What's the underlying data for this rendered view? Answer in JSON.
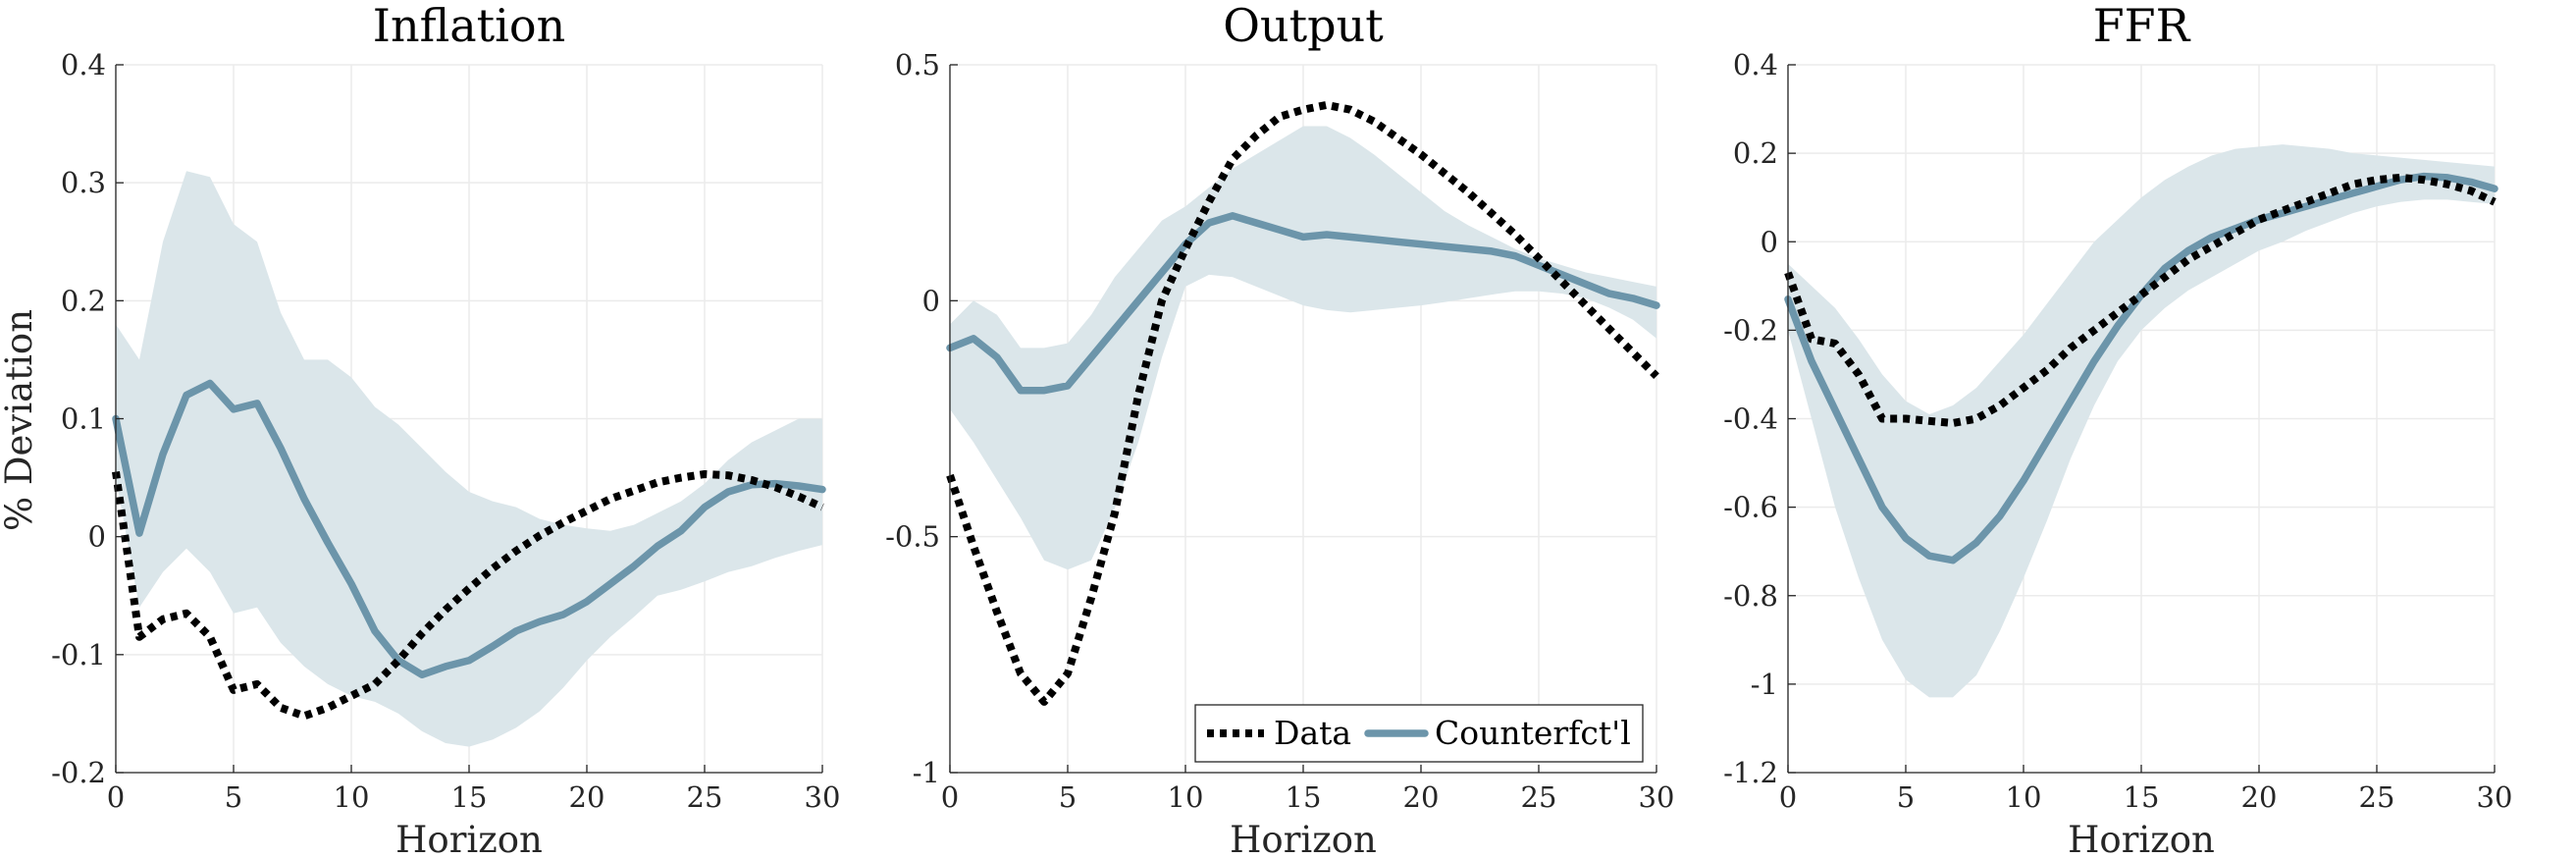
{
  "figure": {
    "ylabel": "% Deviation",
    "colors": {
      "band": "#dbe6ea",
      "counterfactual": "#6c95aa",
      "data": "#000000",
      "grid": "#ebebeb"
    }
  },
  "legend": {
    "placement": "bottom-right of Output panel",
    "entries": [
      "Data",
      "Counterfct'l"
    ]
  },
  "chart_data": [
    {
      "type": "line",
      "title": "Inflation",
      "xlabel": "Horizon",
      "ylabel": "% Deviation",
      "xlim": [
        0,
        30
      ],
      "ylim": [
        -0.2,
        0.4
      ],
      "xticks": [
        0,
        5,
        10,
        15,
        20,
        25,
        30
      ],
      "xtick_labels": [
        "0",
        "5",
        "10",
        "15",
        "20",
        "25",
        "30"
      ],
      "yticks": [
        -0.2,
        -0.1,
        0,
        0.1,
        0.2,
        0.3,
        0.4
      ],
      "ytick_labels": [
        "-0.2",
        "-0.1",
        "0",
        "0.1",
        "0.2",
        "0.3",
        "0.4"
      ],
      "grid": true,
      "x": [
        0,
        1,
        2,
        3,
        4,
        5,
        6,
        7,
        8,
        9,
        10,
        11,
        12,
        13,
        14,
        15,
        16,
        17,
        18,
        19,
        20,
        21,
        22,
        23,
        24,
        25,
        26,
        27,
        28,
        29,
        30
      ],
      "band_upper": [
        0.18,
        0.15,
        0.25,
        0.31,
        0.305,
        0.265,
        0.25,
        0.19,
        0.15,
        0.15,
        0.135,
        0.11,
        0.095,
        0.075,
        0.055,
        0.038,
        0.03,
        0.025,
        0.015,
        0.01,
        0.007,
        0.005,
        0.01,
        0.02,
        0.03,
        0.045,
        0.065,
        0.08,
        0.09,
        0.1,
        0.1
      ],
      "band_lower": [
        0.05,
        -0.06,
        -0.03,
        -0.01,
        -0.03,
        -0.065,
        -0.06,
        -0.09,
        -0.11,
        -0.125,
        -0.135,
        -0.14,
        -0.15,
        -0.165,
        -0.175,
        -0.178,
        -0.172,
        -0.162,
        -0.148,
        -0.128,
        -0.105,
        -0.085,
        -0.068,
        -0.05,
        -0.045,
        -0.038,
        -0.03,
        -0.025,
        -0.018,
        -0.012,
        -0.007
      ],
      "series": [
        {
          "name": "Data",
          "style": "dotted",
          "values": [
            0.055,
            -0.085,
            -0.07,
            -0.065,
            -0.085,
            -0.13,
            -0.125,
            -0.145,
            -0.152,
            -0.145,
            -0.135,
            -0.125,
            -0.105,
            -0.082,
            -0.062,
            -0.044,
            -0.027,
            -0.012,
            0.001,
            0.012,
            0.022,
            0.032,
            0.039,
            0.046,
            0.05,
            0.053,
            0.052,
            0.048,
            0.042,
            0.034,
            0.025
          ]
        },
        {
          "name": "Counterfct'l",
          "style": "solid",
          "values": [
            0.1,
            0.003,
            0.07,
            0.12,
            0.13,
            0.108,
            0.113,
            0.075,
            0.032,
            -0.005,
            -0.04,
            -0.08,
            -0.105,
            -0.117,
            -0.11,
            -0.105,
            -0.093,
            -0.08,
            -0.072,
            -0.066,
            -0.055,
            -0.04,
            -0.025,
            -0.008,
            0.005,
            0.025,
            0.038,
            0.044,
            0.045,
            0.043,
            0.04
          ]
        }
      ]
    },
    {
      "type": "line",
      "title": "Output",
      "xlabel": "Horizon",
      "xlim": [
        0,
        30
      ],
      "ylim": [
        -1,
        0.5
      ],
      "xticks": [
        0,
        5,
        10,
        15,
        20,
        25,
        30
      ],
      "xtick_labels": [
        "0",
        "5",
        "10",
        "15",
        "20",
        "25",
        "30"
      ],
      "yticks": [
        -1,
        -0.5,
        0,
        0.5
      ],
      "ytick_labels": [
        "-1",
        "-0.5",
        "0",
        "0.5"
      ],
      "grid": true,
      "x": [
        0,
        1,
        2,
        3,
        4,
        5,
        6,
        7,
        8,
        9,
        10,
        11,
        12,
        13,
        14,
        15,
        16,
        17,
        18,
        19,
        20,
        21,
        22,
        23,
        24,
        25,
        26,
        27,
        28,
        29,
        30
      ],
      "band_upper": [
        -0.05,
        0.0,
        -0.03,
        -0.1,
        -0.1,
        -0.09,
        -0.03,
        0.05,
        0.11,
        0.17,
        0.2,
        0.24,
        0.28,
        0.31,
        0.34,
        0.37,
        0.37,
        0.345,
        0.31,
        0.27,
        0.23,
        0.19,
        0.16,
        0.135,
        0.11,
        0.09,
        0.075,
        0.06,
        0.05,
        0.04,
        0.03
      ],
      "band_lower": [
        -0.23,
        -0.3,
        -0.38,
        -0.46,
        -0.55,
        -0.57,
        -0.55,
        -0.44,
        -0.3,
        -0.12,
        0.03,
        0.055,
        0.05,
        0.03,
        0.01,
        -0.01,
        -0.02,
        -0.025,
        -0.02,
        -0.015,
        -0.01,
        -0.003,
        0.005,
        0.013,
        0.02,
        0.02,
        0.015,
        0.005,
        -0.015,
        -0.04,
        -0.08
      ],
      "series": [
        {
          "name": "Data",
          "style": "dotted",
          "values": [
            -0.37,
            -0.52,
            -0.66,
            -0.79,
            -0.85,
            -0.79,
            -0.63,
            -0.45,
            -0.2,
            0.0,
            0.11,
            0.21,
            0.3,
            0.35,
            0.39,
            0.405,
            0.415,
            0.405,
            0.38,
            0.345,
            0.31,
            0.27,
            0.23,
            0.185,
            0.14,
            0.09,
            0.04,
            -0.01,
            -0.06,
            -0.11,
            -0.16
          ]
        },
        {
          "name": "Counterfct'l",
          "style": "solid",
          "values": [
            -0.1,
            -0.08,
            -0.12,
            -0.19,
            -0.19,
            -0.18,
            -0.12,
            -0.06,
            0.0,
            0.06,
            0.12,
            0.165,
            0.18,
            0.165,
            0.15,
            0.135,
            0.14,
            0.135,
            0.13,
            0.125,
            0.12,
            0.115,
            0.11,
            0.105,
            0.095,
            0.075,
            0.055,
            0.035,
            0.015,
            0.005,
            -0.01
          ]
        }
      ]
    },
    {
      "type": "line",
      "title": "FFR",
      "xlabel": "Horizon",
      "xlim": [
        0,
        30
      ],
      "ylim": [
        -1.2,
        0.4
      ],
      "xticks": [
        0,
        5,
        10,
        15,
        20,
        25,
        30
      ],
      "xtick_labels": [
        "0",
        "5",
        "10",
        "15",
        "20",
        "25",
        "30"
      ],
      "yticks": [
        -1.2,
        -1,
        -0.8,
        -0.6,
        -0.4,
        -0.2,
        0,
        0.2,
        0.4
      ],
      "ytick_labels": [
        "-1.2",
        "-1",
        "-0.8",
        "-0.6",
        "-0.4",
        "-0.2",
        "0",
        "0.2",
        "0.4"
      ],
      "grid": true,
      "x": [
        0,
        1,
        2,
        3,
        4,
        5,
        6,
        7,
        8,
        9,
        10,
        11,
        12,
        13,
        14,
        15,
        16,
        17,
        18,
        19,
        20,
        21,
        22,
        23,
        24,
        25,
        26,
        27,
        28,
        29,
        30
      ],
      "band_upper": [
        -0.05,
        -0.1,
        -0.15,
        -0.22,
        -0.3,
        -0.36,
        -0.39,
        -0.37,
        -0.33,
        -0.27,
        -0.21,
        -0.14,
        -0.07,
        0.0,
        0.05,
        0.1,
        0.14,
        0.17,
        0.195,
        0.21,
        0.215,
        0.22,
        0.215,
        0.21,
        0.2,
        0.195,
        0.19,
        0.185,
        0.18,
        0.175,
        0.17
      ],
      "band_lower": [
        -0.2,
        -0.4,
        -0.6,
        -0.76,
        -0.9,
        -0.99,
        -1.03,
        -1.03,
        -0.98,
        -0.88,
        -0.76,
        -0.63,
        -0.49,
        -0.37,
        -0.27,
        -0.2,
        -0.15,
        -0.11,
        -0.08,
        -0.05,
        -0.02,
        0.0,
        0.025,
        0.045,
        0.065,
        0.08,
        0.09,
        0.095,
        0.095,
        0.09,
        0.085
      ],
      "series": [
        {
          "name": "Data",
          "style": "dotted",
          "values": [
            -0.07,
            -0.22,
            -0.23,
            -0.3,
            -0.4,
            -0.4,
            -0.405,
            -0.41,
            -0.4,
            -0.37,
            -0.33,
            -0.29,
            -0.24,
            -0.2,
            -0.16,
            -0.12,
            -0.08,
            -0.04,
            -0.01,
            0.02,
            0.05,
            0.07,
            0.09,
            0.11,
            0.13,
            0.14,
            0.145,
            0.14,
            0.13,
            0.115,
            0.09
          ]
        },
        {
          "name": "Counterfct'l",
          "style": "solid",
          "values": [
            -0.13,
            -0.27,
            -0.38,
            -0.49,
            -0.6,
            -0.67,
            -0.71,
            -0.72,
            -0.68,
            -0.62,
            -0.54,
            -0.45,
            -0.36,
            -0.27,
            -0.19,
            -0.12,
            -0.06,
            -0.02,
            0.01,
            0.03,
            0.05,
            0.065,
            0.08,
            0.095,
            0.11,
            0.125,
            0.14,
            0.148,
            0.145,
            0.135,
            0.12
          ]
        }
      ]
    }
  ]
}
